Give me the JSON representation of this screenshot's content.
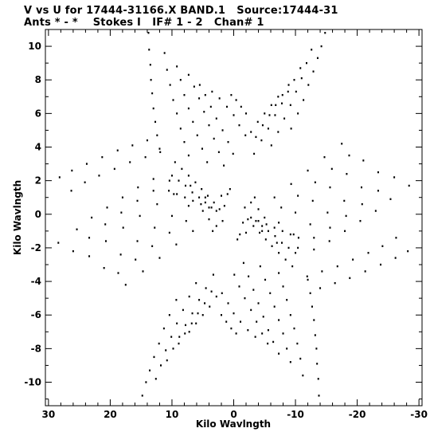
{
  "chart_data": {
    "type": "scatter",
    "title": "V vs U for 17444-31166.X BAND.1   Source:17444-31",
    "subtitle": "Ants * - *    Stokes I   IF# 1 - 2   Chan# 1",
    "xlabel": "Kilo Wavlngth",
    "ylabel": "Kilo Wavlngth",
    "xlim": [
      30.5,
      -30.5
    ],
    "ylim": [
      -11.4,
      11.0
    ],
    "x_reversed": true,
    "x_ticks": [
      30,
      20,
      10,
      0,
      -10,
      -20,
      -30
    ],
    "y_ticks": [
      10,
      8,
      6,
      4,
      2,
      0,
      -2,
      -4,
      -6,
      -8,
      -10
    ],
    "grid": false,
    "marker": "dot",
    "note": "uv-coverage: symmetric radial tracks; points listed for upper half (v>0 side and its mirror are both drawn)",
    "series": [
      {
        "points": [
          [
            13.8,
            10.8
          ],
          [
            13.7,
            9.8
          ],
          [
            13.5,
            8.9
          ],
          [
            13.4,
            8.0
          ],
          [
            13.2,
            7.2
          ],
          [
            13.0,
            6.3
          ],
          [
            12.7,
            5.5
          ],
          [
            12.4,
            4.7
          ],
          [
            12.0,
            3.9
          ],
          [
            11.2,
            9.6
          ],
          [
            10.8,
            8.6
          ],
          [
            10.3,
            7.7
          ],
          [
            9.8,
            6.8
          ],
          [
            9.2,
            6.0
          ],
          [
            8.6,
            5.1
          ],
          [
            8.0,
            4.3
          ],
          [
            7.3,
            3.5
          ],
          [
            9.2,
            8.8
          ],
          [
            8.6,
            8.0
          ],
          [
            8.0,
            7.1
          ],
          [
            7.3,
            6.3
          ],
          [
            6.6,
            5.5
          ],
          [
            5.9,
            4.7
          ],
          [
            5.1,
            3.9
          ],
          [
            4.3,
            3.1
          ],
          [
            7.3,
            8.3
          ],
          [
            6.4,
            7.6
          ],
          [
            5.6,
            6.9
          ],
          [
            4.8,
            6.1
          ],
          [
            4.0,
            5.3
          ],
          [
            3.2,
            4.5
          ],
          [
            2.4,
            3.7
          ],
          [
            1.6,
            2.9
          ],
          [
            5.5,
            7.7
          ],
          [
            4.6,
            7.1
          ],
          [
            3.7,
            6.4
          ],
          [
            2.8,
            5.7
          ],
          [
            1.8,
            5.0
          ],
          [
            0.9,
            4.3
          ],
          [
            0.1,
            3.6
          ],
          [
            3.5,
            7.3
          ],
          [
            2.3,
            6.9
          ],
          [
            1.1,
            6.4
          ],
          [
            0.0,
            5.9
          ],
          [
            -0.9,
            5.3
          ],
          [
            -1.9,
            4.7
          ],
          [
            0.4,
            7.1
          ],
          [
            -0.4,
            6.8
          ],
          [
            -1.2,
            6.4
          ],
          [
            -2.0,
            6.0
          ],
          [
            -14.8,
            10.8
          ],
          [
            -14.2,
            10.0
          ],
          [
            -13.6,
            9.3
          ],
          [
            -12.9,
            8.5
          ],
          [
            -12.1,
            7.7
          ],
          [
            -11.3,
            6.8
          ],
          [
            -10.4,
            6.0
          ],
          [
            -9.3,
            5.1
          ],
          [
            -12.6,
            9.8
          ],
          [
            -11.8,
            9.0
          ],
          [
            -11.0,
            8.1
          ],
          [
            -10.1,
            7.3
          ],
          [
            -9.2,
            6.5
          ],
          [
            -8.2,
            5.7
          ],
          [
            -7.2,
            4.9
          ],
          [
            -6.1,
            4.1
          ],
          [
            -10.8,
            8.7
          ],
          [
            -9.8,
            8.0
          ],
          [
            -8.8,
            7.3
          ],
          [
            -7.8,
            6.6
          ],
          [
            -6.7,
            5.9
          ],
          [
            -5.6,
            5.1
          ],
          [
            -4.5,
            4.4
          ],
          [
            -3.3,
            3.6
          ],
          [
            -8.9,
            7.7
          ],
          [
            -7.9,
            7.1
          ],
          [
            -6.8,
            6.5
          ],
          [
            -5.8,
            5.9
          ],
          [
            -4.7,
            5.3
          ],
          [
            -3.6,
            4.6
          ],
          [
            -7.2,
            7.0
          ],
          [
            -6.1,
            6.5
          ],
          [
            -5.0,
            6.0
          ],
          [
            -3.9,
            5.5
          ],
          [
            -2.8,
            4.9
          ],
          [
            28.2,
            2.2
          ],
          [
            26.2,
            2.6
          ],
          [
            23.8,
            3.0
          ],
          [
            21.3,
            3.4
          ],
          [
            18.8,
            3.8
          ],
          [
            16.4,
            4.1
          ],
          [
            14.0,
            4.4
          ],
          [
            26.3,
            1.4
          ],
          [
            24.1,
            1.9
          ],
          [
            21.8,
            2.3
          ],
          [
            19.3,
            2.7
          ],
          [
            16.8,
            3.1
          ],
          [
            14.3,
            3.4
          ],
          [
            11.9,
            3.7
          ],
          [
            28.4,
            -1.7
          ],
          [
            25.4,
            -0.9
          ],
          [
            23.0,
            -0.2
          ],
          [
            20.5,
            0.4
          ],
          [
            18.0,
            1.0
          ],
          [
            15.5,
            1.6
          ],
          [
            13.0,
            2.1
          ],
          [
            26.0,
            -2.2
          ],
          [
            23.4,
            -1.4
          ],
          [
            20.8,
            -0.6
          ],
          [
            18.2,
            0.1
          ],
          [
            15.6,
            0.8
          ],
          [
            13.0,
            1.4
          ],
          [
            10.4,
            2.0
          ],
          [
            23.4,
            -2.5
          ],
          [
            20.7,
            -1.6
          ],
          [
            17.9,
            -0.8
          ],
          [
            15.2,
            -0.1
          ],
          [
            12.4,
            0.6
          ],
          [
            9.7,
            1.2
          ],
          [
            7.0,
            1.7
          ],
          [
            21.0,
            -3.2
          ],
          [
            18.3,
            -2.4
          ],
          [
            15.6,
            -1.6
          ],
          [
            12.8,
            -0.8
          ],
          [
            10.0,
            -0.1
          ],
          [
            7.3,
            0.5
          ],
          [
            4.6,
            1.0
          ],
          [
            18.7,
            -3.5
          ],
          [
            15.9,
            -2.7
          ],
          [
            13.2,
            -1.9
          ],
          [
            10.4,
            -1.1
          ],
          [
            7.7,
            -0.4
          ],
          [
            5.0,
            0.2
          ],
          [
            17.5,
            -4.2
          ],
          [
            14.7,
            -3.4
          ],
          [
            12.0,
            -2.6
          ],
          [
            9.3,
            -1.8
          ],
          [
            6.6,
            -1.0
          ],
          [
            4.0,
            -0.3
          ],
          [
            9.5,
            3.1
          ],
          [
            8.4,
            2.7
          ],
          [
            7.3,
            2.3
          ],
          [
            6.2,
            1.9
          ],
          [
            5.2,
            1.5
          ],
          [
            4.2,
            1.1
          ],
          [
            3.2,
            0.7
          ],
          [
            2.3,
            0.3
          ],
          [
            10.0,
            2.3
          ],
          [
            8.9,
            2.0
          ],
          [
            7.8,
            1.7
          ],
          [
            6.7,
            1.3
          ],
          [
            5.6,
            1.0
          ],
          [
            4.6,
            0.7
          ],
          [
            3.6,
            0.4
          ],
          [
            10.5,
            1.4
          ],
          [
            9.2,
            1.2
          ],
          [
            7.9,
            1.0
          ],
          [
            6.6,
            0.8
          ],
          [
            5.3,
            0.6
          ],
          [
            4.0,
            0.4
          ],
          [
            2.8,
            0.2
          ],
          [
            2.0,
            1.1
          ],
          [
            1.5,
            0.5
          ],
          [
            1.8,
            -0.4
          ],
          [
            2.8,
            -0.7
          ],
          [
            3.4,
            -1.0
          ],
          [
            1.0,
            1.2
          ],
          [
            0.6,
            1.5
          ]
        ]
      }
    ]
  }
}
